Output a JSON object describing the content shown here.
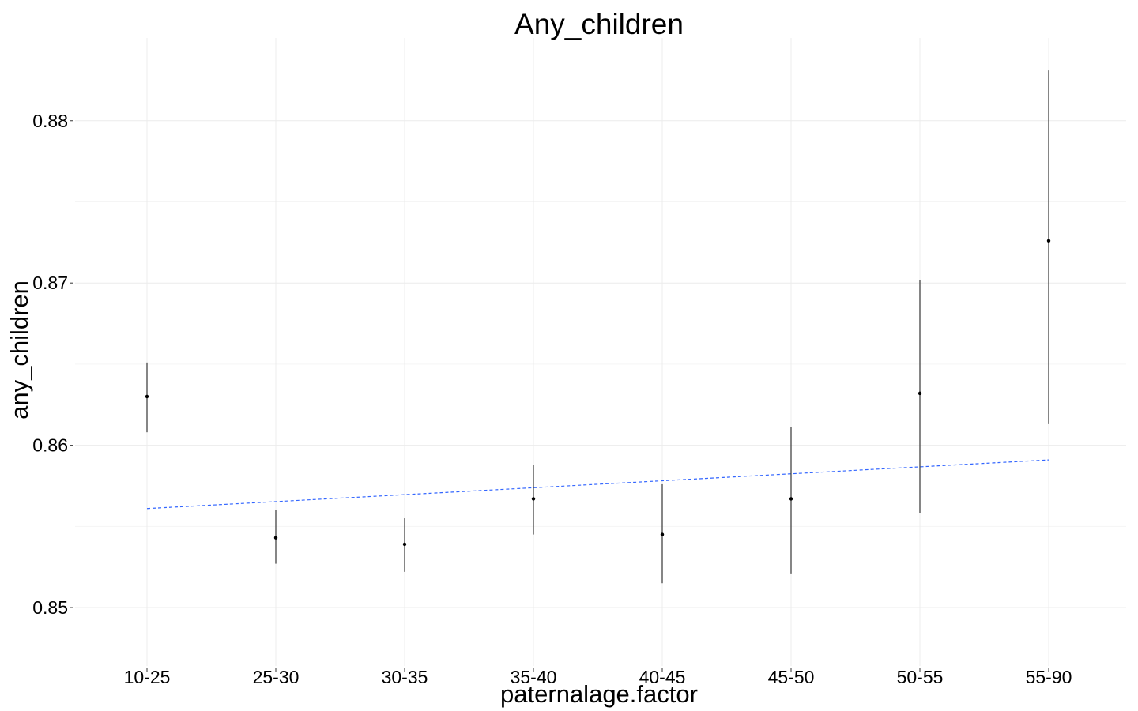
{
  "chart_data": {
    "type": "scatter",
    "title": "Any_children",
    "xlabel": "paternalage.factor",
    "ylabel": "any_children",
    "categories": [
      "10-25",
      "25-30",
      "30-35",
      "35-40",
      "40-45",
      "45-50",
      "50-55",
      "55-90"
    ],
    "points": [
      {
        "category": "10-25",
        "y": 0.863,
        "ymin": 0.8608,
        "ymax": 0.8651
      },
      {
        "category": "25-30",
        "y": 0.8543,
        "ymin": 0.8527,
        "ymax": 0.856
      },
      {
        "category": "30-35",
        "y": 0.8539,
        "ymin": 0.8522,
        "ymax": 0.8555
      },
      {
        "category": "35-40",
        "y": 0.8567,
        "ymin": 0.8545,
        "ymax": 0.8588
      },
      {
        "category": "40-45",
        "y": 0.8545,
        "ymin": 0.8515,
        "ymax": 0.8576
      },
      {
        "category": "45-50",
        "y": 0.8567,
        "ymin": 0.8521,
        "ymax": 0.8611
      },
      {
        "category": "50-55",
        "y": 0.8632,
        "ymin": 0.8558,
        "ymax": 0.8702
      },
      {
        "category": "55-90",
        "y": 0.8726,
        "ymin": 0.8613,
        "ymax": 0.8831
      }
    ],
    "trend_line": {
      "start": 0.8561,
      "end": 0.8591,
      "color": "#3366ff",
      "style": "dashed"
    },
    "ylim": [
      0.85,
      0.885
    ],
    "yticks": [
      0.85,
      0.86,
      0.87,
      0.88
    ],
    "ytick_labels": [
      "0.85",
      "0.86",
      "0.87",
      "0.88"
    ],
    "grid": true,
    "point_color": "#000000",
    "errorbar_color": "#444444"
  }
}
